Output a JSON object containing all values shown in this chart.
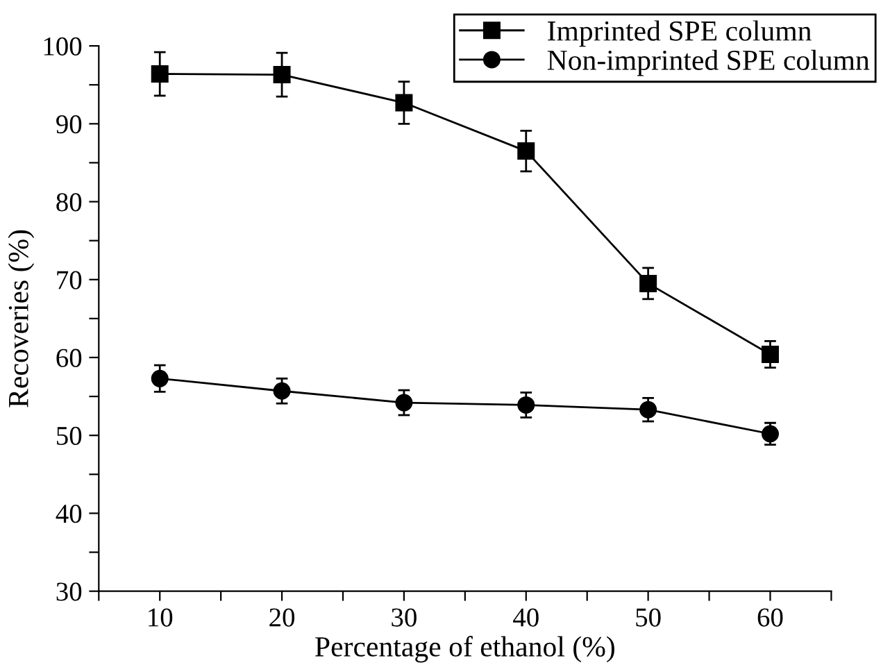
{
  "chart_data": {
    "type": "line",
    "xlabel": "Percentage of ethanol (%)",
    "ylabel": "Recoveries (%)",
    "x": [
      10,
      20,
      30,
      40,
      50,
      60
    ],
    "series": [
      {
        "name": "Imprinted SPE column",
        "color": "#000000",
        "marker": "square",
        "values": [
          96.4,
          96.3,
          92.7,
          86.5,
          69.5,
          60.4
        ],
        "errors": [
          2.8,
          2.8,
          2.7,
          2.6,
          2.0,
          1.7
        ]
      },
      {
        "name": "Non-imprinted SPE column",
        "color": "#000000",
        "marker": "circle",
        "values": [
          57.3,
          55.7,
          54.2,
          53.9,
          53.3,
          50.2
        ],
        "errors": [
          1.7,
          1.6,
          1.6,
          1.6,
          1.5,
          1.4
        ]
      }
    ],
    "xlim": [
      5,
      65
    ],
    "ylim": [
      30,
      100
    ],
    "xticks": [
      {
        "value": 5,
        "label": null
      },
      10,
      {
        "value": 15,
        "label": null
      },
      20,
      {
        "value": 25,
        "label": null
      },
      30,
      {
        "value": 35,
        "label": null
      },
      40,
      {
        "value": 45,
        "label": null
      },
      50,
      {
        "value": 55,
        "label": null
      },
      60,
      {
        "value": 65,
        "label": null
      }
    ],
    "yticks": [
      30,
      {
        "value": 35,
        "label": null
      },
      40,
      {
        "value": 45,
        "label": null
      },
      50,
      {
        "value": 55,
        "label": null
      },
      60,
      {
        "value": 65,
        "label": null
      },
      70,
      {
        "value": 75,
        "label": null
      },
      80,
      {
        "value": 85,
        "label": null
      },
      90,
      {
        "value": 95,
        "label": null
      },
      100
    ],
    "grid": false,
    "legend": "top right",
    "line_style": "solid"
  }
}
